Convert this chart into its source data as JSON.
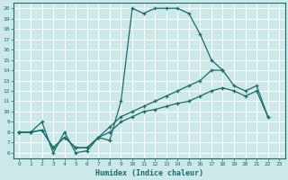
{
  "xlabel": "Humidex (Indice chaleur)",
  "bg_color": "#cce8e8",
  "line_color": "#1a6b6b",
  "grid_color": "#ffffff",
  "xlim": [
    -0.5,
    23.5
  ],
  "ylim": [
    5.5,
    20.5
  ],
  "xticks": [
    0,
    1,
    2,
    3,
    4,
    5,
    6,
    7,
    8,
    9,
    10,
    11,
    12,
    13,
    14,
    15,
    16,
    17,
    18,
    19,
    20,
    21,
    22,
    23
  ],
  "yticks": [
    6,
    7,
    8,
    9,
    10,
    11,
    12,
    13,
    14,
    15,
    16,
    17,
    18,
    19,
    20
  ],
  "series": [
    {
      "x": [
        0,
        1,
        2,
        3,
        4,
        5,
        6,
        7,
        8,
        9,
        10,
        11,
        12,
        13,
        14,
        15,
        16,
        17,
        18,
        19,
        20,
        21,
        22
      ],
      "y": [
        8,
        8,
        9,
        6,
        8,
        6,
        6.2,
        7.5,
        7.2,
        11,
        20,
        19.5,
        20,
        20,
        20,
        19.5,
        17.5,
        15,
        14,
        12.5,
        12,
        12.5,
        9.5
      ]
    },
    {
      "x": [
        0,
        1,
        2,
        3,
        4,
        5,
        6,
        7,
        8,
        9,
        10,
        11,
        12,
        13,
        14,
        15,
        16,
        17,
        18
      ],
      "y": [
        8,
        8,
        8.2,
        6.5,
        7.5,
        6.5,
        6.5,
        7.5,
        8.5,
        9.5,
        10,
        10.5,
        11,
        11.5,
        12,
        12.5,
        13,
        14,
        14
      ]
    },
    {
      "x": [
        0,
        1,
        2,
        3,
        4,
        5,
        6,
        7,
        8,
        9,
        10,
        11,
        12,
        13,
        14,
        15,
        16,
        17,
        18,
        19,
        20,
        21,
        22
      ],
      "y": [
        8,
        8,
        8.2,
        6.5,
        7.5,
        6.5,
        6.5,
        7.5,
        8,
        9,
        9.5,
        10,
        10.2,
        10.5,
        10.8,
        11,
        11.5,
        12,
        12.3,
        12,
        11.5,
        12,
        9.5
      ]
    }
  ]
}
